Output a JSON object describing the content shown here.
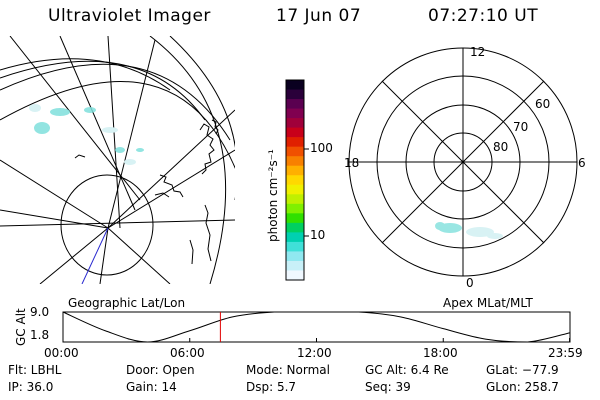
{
  "header": {
    "instrument": "Ultraviolet Imager",
    "date": "17 Jun 07",
    "time": "07:27:10 UT"
  },
  "left_panel": {
    "label": "Geographic Lat/Lon"
  },
  "right_panel": {
    "label": "Apex MLat/MLT",
    "mlt_labels": {
      "top": "12",
      "left": "18",
      "right": "6",
      "bottom": "0"
    },
    "lat_labels": [
      "60",
      "70",
      "80"
    ]
  },
  "colorbar": {
    "unit_label": "photon cm⁻²s⁻¹",
    "ticks": [
      "100",
      "10"
    ],
    "colors": [
      "#0a0020",
      "#2a003a",
      "#5a0050",
      "#800050",
      "#a0003a",
      "#c8001a",
      "#e02000",
      "#f05000",
      "#f88000",
      "#ffb000",
      "#ffd800",
      "#f0f000",
      "#c0f000",
      "#80f000",
      "#30e000",
      "#00d060",
      "#00d0b0",
      "#40e0d8",
      "#90e8f0",
      "#c8f0f8",
      "#f0f8ff"
    ]
  },
  "altitude_plot": {
    "ylabel": "GC Alt",
    "yticks": [
      "9.0",
      "1.8"
    ],
    "xticks": [
      "00:00",
      "06:00",
      "12:00",
      "18:00",
      "23:59"
    ],
    "current_time_hours": 7.45
  },
  "info": {
    "flt": "Flt: LBHL",
    "ip": "IP: 36.0",
    "door": "Door: Open",
    "gain": "Gain: 14",
    "mode": "Mode: Normal",
    "dsp": "Dsp:     5.7",
    "gc_alt": "GC Alt: 6.4 Re",
    "seq": "Seq: 39",
    "glat": "GLat: −77.9",
    "glon": "GLon: 258.7"
  },
  "chart_data": {
    "type": "line",
    "title": "",
    "xlabel": "",
    "ylabel": "GC Alt",
    "x": [
      0,
      2,
      4,
      6,
      8,
      10,
      12,
      14,
      16,
      18,
      20,
      22,
      23.98
    ],
    "series": [
      {
        "values": [
          9.0,
          4.5,
          1.8,
          4.5,
          7.8,
          9.0,
          9.0,
          9.0,
          7.8,
          5.0,
          2.5,
          1.8,
          4.0
        ]
      }
    ],
    "xlim": [
      0,
      24
    ],
    "ylim": [
      1.8,
      9.0
    ],
    "current_time_hours": 7.45,
    "grid": false
  }
}
